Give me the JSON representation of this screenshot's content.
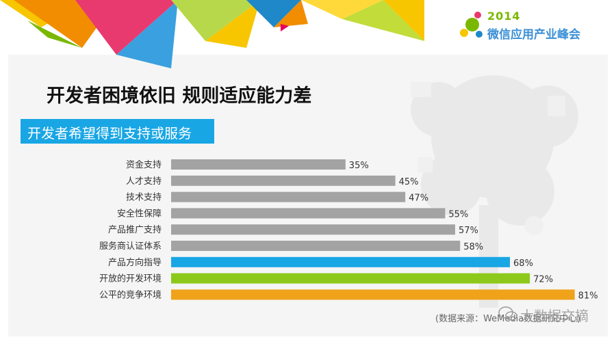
{
  "logo": {
    "year": "2014",
    "title": "微信应用产业峰会",
    "icon": "chat-bubble-icon"
  },
  "title": "开发者困境依旧 规则适应能力差",
  "subtitle": "开发者希望得到支持或服务",
  "source": "(数据来源：WeMedia数据研究中心)",
  "watermark": {
    "text": "大数据文摘",
    "icon": "wechat-icon"
  },
  "colors": {
    "gray": "#a3a3a3",
    "blue": "#19a6e4",
    "green": "#8cc91a",
    "orange": "#f0a21b",
    "subtitle_bg": "#19a6e4"
  },
  "chart_data": {
    "type": "bar",
    "orientation": "horizontal",
    "categories": [
      "资金支持",
      "人才支持",
      "技术支持",
      "安全性保障",
      "产品推广支持",
      "服务商认证体系",
      "产品方向指导",
      "开放的开发环境",
      "公平的竞争环境"
    ],
    "values": [
      35,
      45,
      47,
      55,
      57,
      58,
      68,
      72,
      81
    ],
    "labels": [
      "35%",
      "45%",
      "47%",
      "55%",
      "57%",
      "58%",
      "68%",
      "72%",
      "81%"
    ],
    "bar_colors": [
      "#a3a3a3",
      "#a3a3a3",
      "#a3a3a3",
      "#a3a3a3",
      "#a3a3a3",
      "#a3a3a3",
      "#19a6e4",
      "#8cc91a",
      "#f0a21b"
    ],
    "unit": "%",
    "xlim": [
      0,
      100
    ],
    "grid": false
  }
}
